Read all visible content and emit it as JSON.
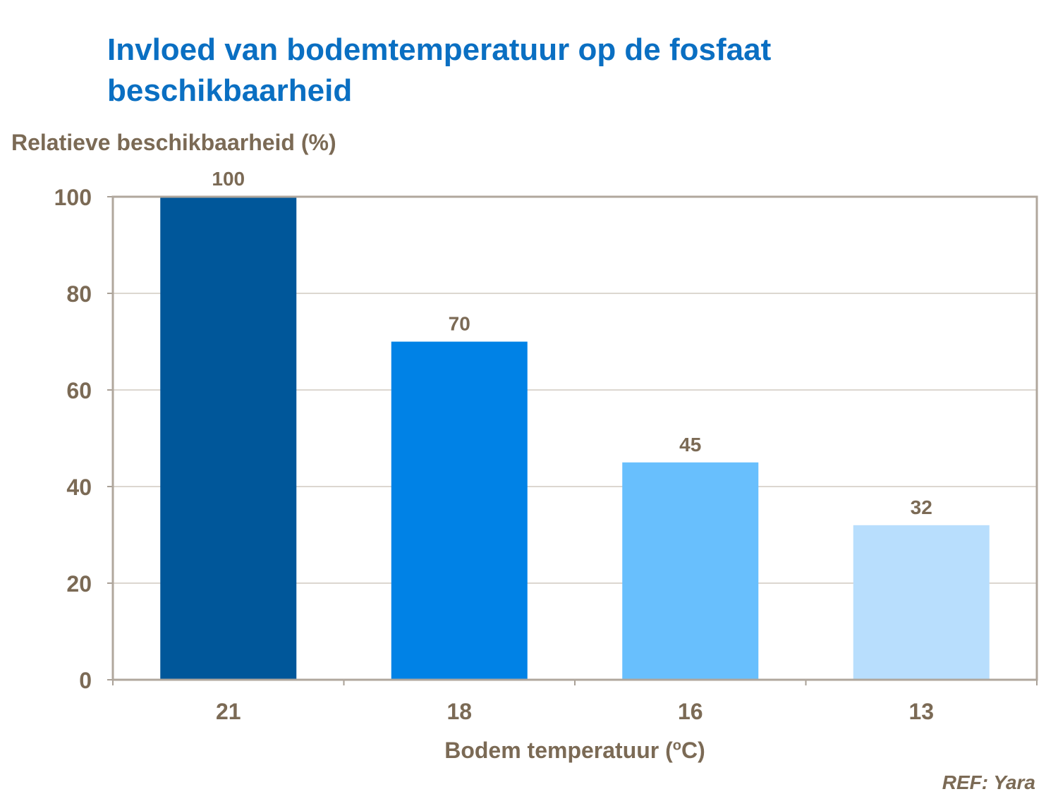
{
  "chart_data": {
    "type": "bar",
    "title": "Invloed van bodemtemperatuur op de fosfaat beschikbaarheid",
    "ylabel": "Relatieve beschikbaarheid (%)",
    "xlabel_prefix": "Bodem temperatuur (",
    "xlabel_sup": "o",
    "xlabel_suffix": "C)",
    "categories": [
      "21",
      "18",
      "16",
      "13"
    ],
    "values": [
      100,
      70,
      45,
      32
    ],
    "colors": [
      "#00579a",
      "#0082e6",
      "#68bffd",
      "#b8defd"
    ],
    "ylim": [
      0,
      100
    ],
    "yticks": [
      0,
      20,
      40,
      60,
      80,
      100
    ],
    "grid": true,
    "data_labels": true
  },
  "reference": "REF: Yara"
}
